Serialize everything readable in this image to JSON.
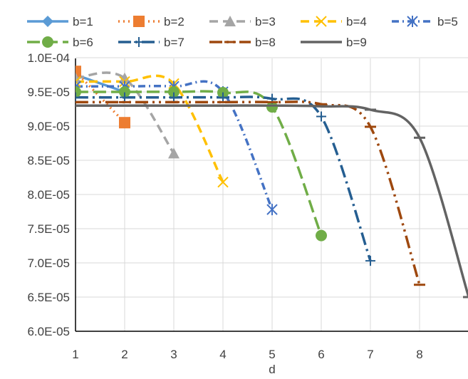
{
  "chart_data": {
    "type": "line",
    "title": "",
    "xlabel": "d",
    "ylabel": "",
    "x_ticks": [
      "1",
      "2",
      "3",
      "4",
      "5",
      "6",
      "7",
      "8"
    ],
    "y_ticks": [
      "6.0E-05",
      "6.5E-05",
      "7.0E-05",
      "7.5E-05",
      "8.0E-05",
      "8.5E-05",
      "9.0E-05",
      "9.5E-05",
      "1.0E-04"
    ],
    "xlim": [
      0.95,
      8.8
    ],
    "ylim": [
      6e-05,
      0.0001
    ],
    "grid": true,
    "legend_position": "top",
    "series": [
      {
        "name": "b=1",
        "color": "#5B9BD5",
        "dash": "solid",
        "marker": "diamond",
        "x": [
          1,
          2
        ],
        "y": [
          9.75e-05,
          9.5e-05
        ]
      },
      {
        "name": "b=2",
        "color": "#ED7D31",
        "dash": "dot",
        "marker": "square",
        "x": [
          1,
          2
        ],
        "y": [
          9.8e-05,
          9.05e-05
        ]
      },
      {
        "name": "b=3",
        "color": "#A5A5A5",
        "dash": "dash",
        "marker": "triangle",
        "x": [
          1,
          2,
          3
        ],
        "y": [
          9.7e-05,
          9.7e-05,
          8.6e-05
        ]
      },
      {
        "name": "b=4",
        "color": "#FFC000",
        "dash": "dash",
        "marker": "x",
        "x": [
          1,
          2,
          3,
          4
        ],
        "y": [
          9.65e-05,
          9.65e-05,
          9.62e-05,
          8.18e-05
        ]
      },
      {
        "name": "b=5",
        "color": "#4472C4",
        "dash": "dashdot",
        "marker": "star",
        "x": [
          1,
          2,
          3,
          4,
          5
        ],
        "y": [
          9.58e-05,
          9.58e-05,
          9.58e-05,
          9.5e-05,
          7.78e-05
        ]
      },
      {
        "name": "b=6",
        "color": "#70AD47",
        "dash": "longdash",
        "marker": "circle",
        "x": [
          1,
          2,
          3,
          4,
          5,
          6
        ],
        "y": [
          9.5e-05,
          9.5e-05,
          9.5e-05,
          9.49e-05,
          9.28e-05,
          7.4e-05
        ]
      },
      {
        "name": "b=7",
        "color": "#255E91",
        "dash": "longdashdot",
        "marker": "plus",
        "x": [
          1,
          2,
          3,
          4,
          5,
          6,
          7
        ],
        "y": [
          9.42e-05,
          9.42e-05,
          9.42e-05,
          9.42e-05,
          9.4e-05,
          9.14e-05,
          7.03e-05
        ]
      },
      {
        "name": "b=8",
        "color": "#9E480E",
        "dash": "longdashdotdot",
        "marker": "dash",
        "x": [
          1,
          2,
          3,
          4,
          5,
          6,
          7,
          8
        ],
        "y": [
          9.35e-05,
          9.35e-05,
          9.35e-05,
          9.35e-05,
          9.35e-05,
          9.32e-05,
          8.99e-05,
          6.68e-05
        ]
      },
      {
        "name": "b=9",
        "color": "#636363",
        "dash": "solid",
        "marker": "dash",
        "x": [
          1,
          2,
          3,
          4,
          5,
          6,
          7,
          8,
          9
        ],
        "y": [
          9.3e-05,
          9.3e-05,
          9.3e-05,
          9.3e-05,
          9.3e-05,
          9.29e-05,
          9.24e-05,
          8.83e-05,
          6.5e-05
        ]
      }
    ]
  }
}
